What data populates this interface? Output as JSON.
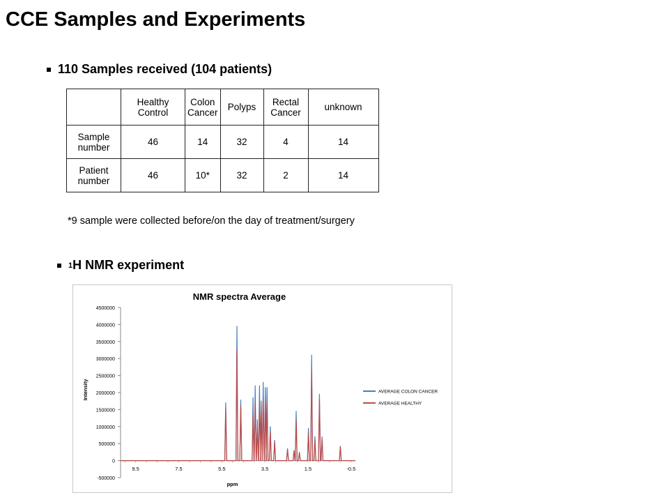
{
  "slide": {
    "title": "CCE Samples and Experiments",
    "bullet_samples": "110 Samples received (104 patients)",
    "bullet_nmr_sup": "1",
    "bullet_nmr_text": "H NMR experiment",
    "footnote": "*9 sample were collected before/on the day of treatment/surgery"
  },
  "table": {
    "headers": [
      "",
      "Healthy Control",
      "Colon Cancer",
      "Polyps",
      "Rectal Cancer",
      "unknown"
    ],
    "rows": [
      {
        "label": "Sample number",
        "values": [
          "46",
          "14",
          "32",
          "4",
          "14"
        ]
      },
      {
        "label": "Patient number",
        "values": [
          "46",
          "10*",
          "32",
          "2",
          "14"
        ]
      }
    ]
  },
  "chart_data": {
    "type": "line",
    "title": "NMR spectra Average",
    "xlabel": "ppm",
    "ylabel": "Intensity",
    "xlim": [
      10.2,
      -0.7
    ],
    "ylim": [
      -500000,
      4500000
    ],
    "x_reversed": true,
    "x_ticks": [
      "9.5",
      "7.5",
      "5.5",
      "3.5",
      "1.5",
      "-0.5"
    ],
    "y_ticks": [
      "4500000",
      "4000000",
      "3500000",
      "3000000",
      "2500000",
      "2000000",
      "1500000",
      "1000000",
      "500000",
      "0",
      "-500000"
    ],
    "legend_position": "right",
    "series": [
      {
        "name": "AVERAGE COLON CANCER",
        "color": "#4a7ebb",
        "peaks": [
          [
            5.32,
            1700000
          ],
          [
            4.8,
            3950000
          ],
          [
            4.62,
            1780000
          ],
          [
            4.05,
            1850000
          ],
          [
            3.95,
            2200000
          ],
          [
            3.85,
            1200000
          ],
          [
            3.75,
            2200000
          ],
          [
            3.67,
            1750000
          ],
          [
            3.58,
            2300000
          ],
          [
            3.48,
            2150000
          ],
          [
            3.4,
            2150000
          ],
          [
            3.25,
            1000000
          ],
          [
            3.05,
            600000
          ],
          [
            2.45,
            350000
          ],
          [
            2.15,
            300000
          ],
          [
            2.05,
            1450000
          ],
          [
            1.9,
            250000
          ],
          [
            1.48,
            950000
          ],
          [
            1.33,
            3100000
          ],
          [
            1.18,
            700000
          ],
          [
            0.97,
            1950000
          ],
          [
            0.85,
            700000
          ],
          [
            0.0,
            420000
          ]
        ]
      },
      {
        "name": "AVERAGE HEALTHY",
        "color": "#be4b48",
        "peaks": [
          [
            5.32,
            1550000
          ],
          [
            4.8,
            3250000
          ],
          [
            4.62,
            1600000
          ],
          [
            4.05,
            1300000
          ],
          [
            3.95,
            1700000
          ],
          [
            3.85,
            1000000
          ],
          [
            3.75,
            1800000
          ],
          [
            3.67,
            1400000
          ],
          [
            3.58,
            1850000
          ],
          [
            3.48,
            1700000
          ],
          [
            3.4,
            1700000
          ],
          [
            3.25,
            850000
          ],
          [
            3.05,
            550000
          ],
          [
            2.45,
            330000
          ],
          [
            2.15,
            280000
          ],
          [
            2.05,
            1200000
          ],
          [
            1.9,
            230000
          ],
          [
            1.48,
            800000
          ],
          [
            1.33,
            2650000
          ],
          [
            1.18,
            600000
          ],
          [
            0.97,
            1800000
          ],
          [
            0.85,
            620000
          ],
          [
            0.0,
            420000
          ]
        ]
      }
    ]
  }
}
